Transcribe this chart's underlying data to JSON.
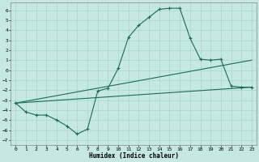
{
  "xlabel": "Humidex (Indice chaleur)",
  "xlim": [
    -0.5,
    23.5
  ],
  "ylim": [
    -7.5,
    6.8
  ],
  "yticks": [
    -7,
    -6,
    -5,
    -4,
    -3,
    -2,
    -1,
    0,
    1,
    2,
    3,
    4,
    5,
    6
  ],
  "xticks": [
    0,
    1,
    2,
    3,
    4,
    5,
    6,
    7,
    8,
    9,
    10,
    11,
    12,
    13,
    14,
    15,
    16,
    17,
    18,
    19,
    20,
    21,
    22,
    23
  ],
  "bg_color": "#c6e8e2",
  "line_color": "#1a6b5a",
  "grid_color": "#b0d8d0",
  "line1_x": [
    0,
    1,
    2,
    3,
    4,
    5,
    6,
    7,
    8,
    9,
    10,
    11,
    12,
    13,
    14,
    15,
    16,
    17,
    18,
    19,
    20,
    21,
    22,
    23
  ],
  "line1_y": [
    -3.3,
    -4.2,
    -4.5,
    -4.5,
    -5.0,
    -5.6,
    -6.4,
    -5.9,
    -2.1,
    -1.8,
    0.2,
    3.3,
    4.5,
    5.3,
    6.1,
    6.2,
    6.2,
    3.2,
    1.1,
    1.0,
    1.1,
    -1.6,
    -1.7,
    -1.7
  ],
  "line2_x": [
    0,
    23
  ],
  "line2_y": [
    -3.3,
    1.0
  ],
  "line3_x": [
    0,
    23
  ],
  "line3_y": [
    -3.3,
    -1.7
  ]
}
